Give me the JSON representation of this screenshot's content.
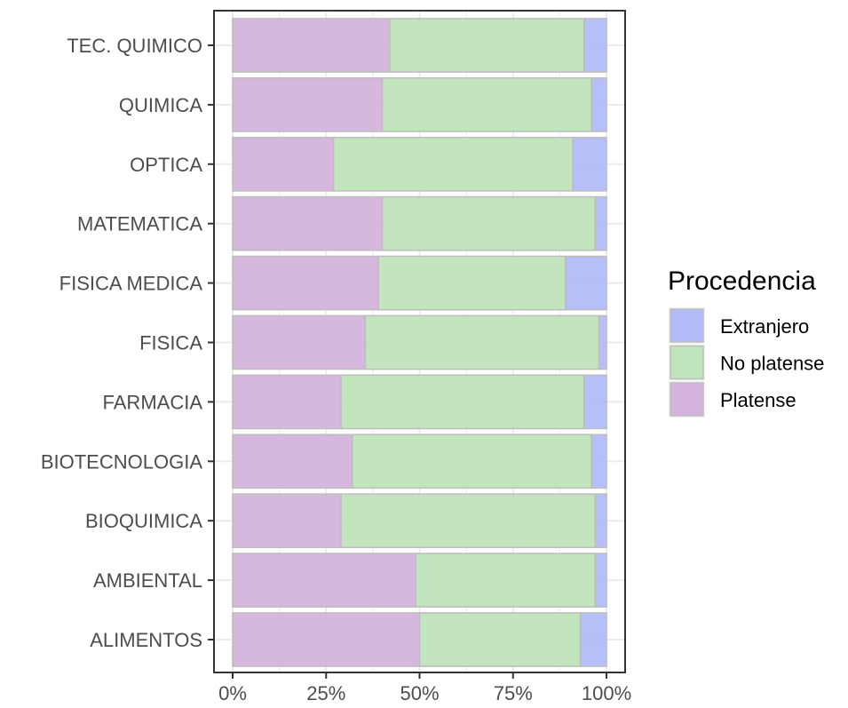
{
  "chart_data": {
    "type": "bar",
    "orientation": "horizontal",
    "stacked": "percent",
    "categories": [
      "TEC. QUIMICO",
      "QUIMICA",
      "OPTICA",
      "MATEMATICA",
      "FISICA MEDICA",
      "FISICA",
      "FARMACIA",
      "BIOTECNOLOGIA",
      "BIOQUIMICA",
      "AMBIENTAL",
      "ALIMENTOS"
    ],
    "series": [
      {
        "name": "Platense",
        "color": "#d4b4dc",
        "values": [
          0.42,
          0.4,
          0.27,
          0.4,
          0.39,
          0.355,
          0.29,
          0.32,
          0.29,
          0.49,
          0.5
        ]
      },
      {
        "name": "No platense",
        "color": "#c0e4bb",
        "values": [
          0.52,
          0.56,
          0.64,
          0.57,
          0.5,
          0.625,
          0.65,
          0.64,
          0.68,
          0.48,
          0.43
        ]
      },
      {
        "name": "Extranjero",
        "color": "#b2bcf8",
        "values": [
          0.06,
          0.04,
          0.09,
          0.03,
          0.11,
          0.02,
          0.06,
          0.04,
          0.03,
          0.03,
          0.07
        ]
      }
    ],
    "xlim": [
      0,
      1
    ],
    "x_ticks": [
      "0%",
      "25%",
      "50%",
      "75%",
      "100%"
    ],
    "xlabel": "",
    "ylabel": "",
    "grid": true,
    "legend": {
      "title": "Procedencia",
      "position": "right",
      "entries": [
        "Extranjero",
        "No platense",
        "Platense"
      ]
    }
  }
}
